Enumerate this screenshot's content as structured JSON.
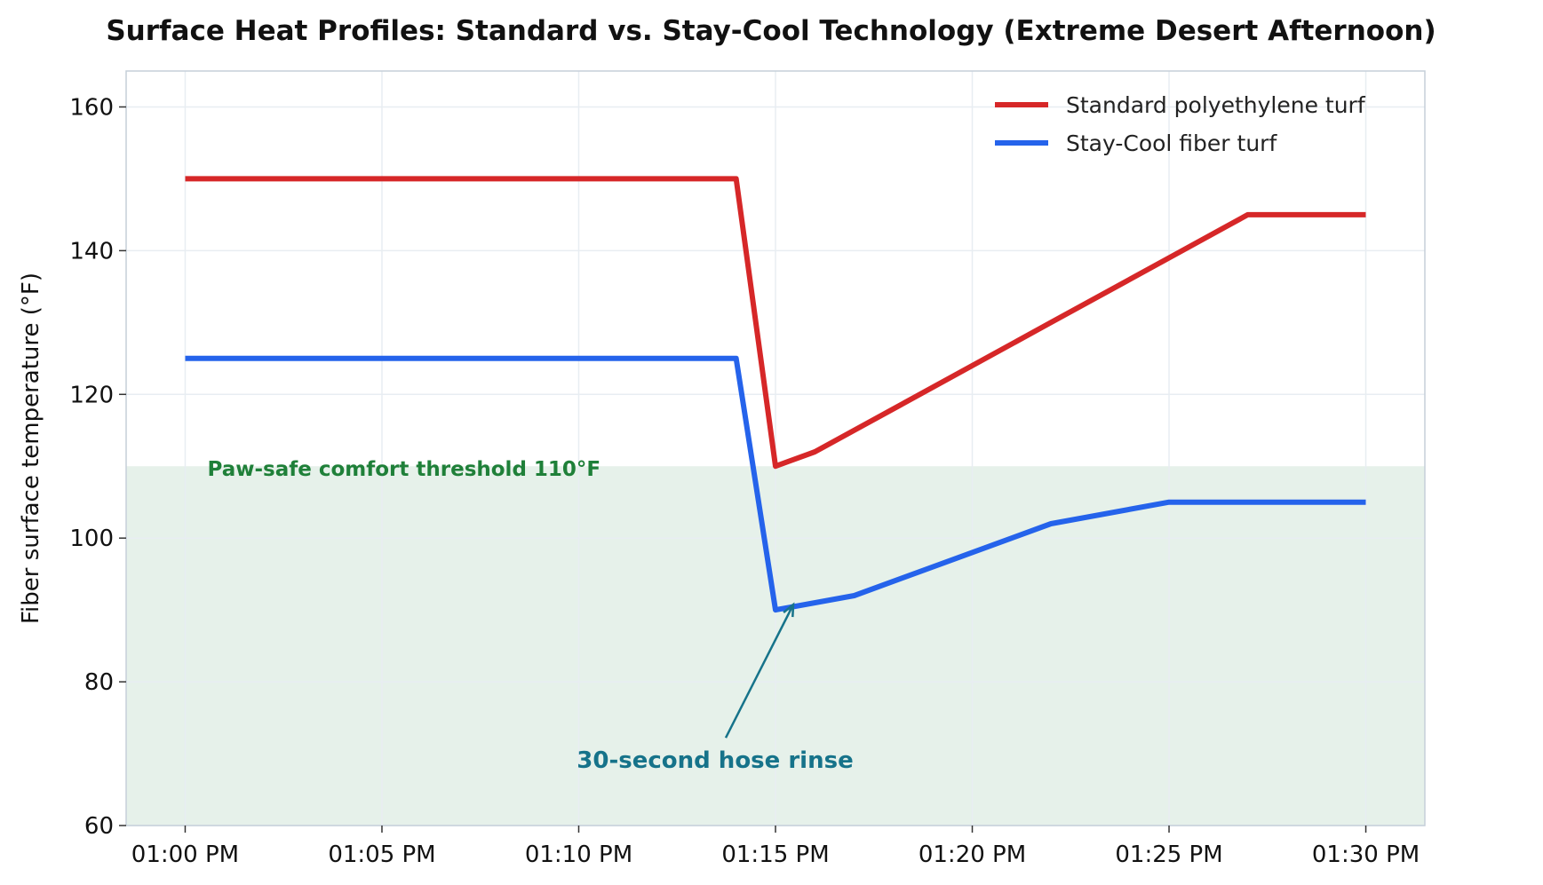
{
  "chart_data": {
    "type": "line",
    "title": "Surface Heat Profiles: Standard vs. Stay-Cool Technology (Extreme Desert Afternoon)",
    "xlabel": "",
    "ylabel": "Fiber surface temperature (°F)",
    "x_unit": "minutes after 01:00 PM",
    "xlim": [
      -1.5,
      31.5
    ],
    "ylim": [
      60,
      165
    ],
    "x_ticks": [
      0,
      5,
      10,
      15,
      20,
      25,
      30
    ],
    "x_tick_labels": [
      "01:00 PM",
      "01:05 PM",
      "01:10 PM",
      "01:15 PM",
      "01:20 PM",
      "01:25 PM",
      "01:30 PM"
    ],
    "y_ticks": [
      60,
      80,
      100,
      120,
      140,
      160
    ],
    "y_tick_labels": [
      "60",
      "80",
      "100",
      "120",
      "140",
      "160"
    ],
    "grid": true,
    "legend_position": "top-right",
    "series": [
      {
        "name": "Standard polyethylene turf",
        "color": "#d62728",
        "x": [
          "01:00 PM",
          "01:14 PM",
          "01:15 PM",
          "01:16 PM",
          "01:17 PM",
          "01:22 PM",
          "01:25 PM",
          "01:27 PM",
          "01:30 PM"
        ],
        "y": [
          150,
          150,
          110,
          112,
          115,
          130,
          139,
          145,
          145
        ]
      },
      {
        "name": "Stay-Cool fiber turf",
        "color": "#2563eb",
        "x": [
          "01:00 PM",
          "01:14 PM",
          "01:15 PM",
          "01:17 PM",
          "01:22 PM",
          "01:25 PM",
          "01:30 PM"
        ],
        "y": [
          125,
          125,
          90,
          92,
          102,
          105,
          105
        ]
      }
    ],
    "threshold": {
      "value": 110,
      "label": "Paw-safe comfort threshold 110°F",
      "fill_color": "#e6f1ea",
      "text_color": "#1f8039"
    },
    "annotation": {
      "text": "30-second hose rinse",
      "point_x": "01:15 PM",
      "point_y": 90,
      "color": "#16738a"
    }
  }
}
